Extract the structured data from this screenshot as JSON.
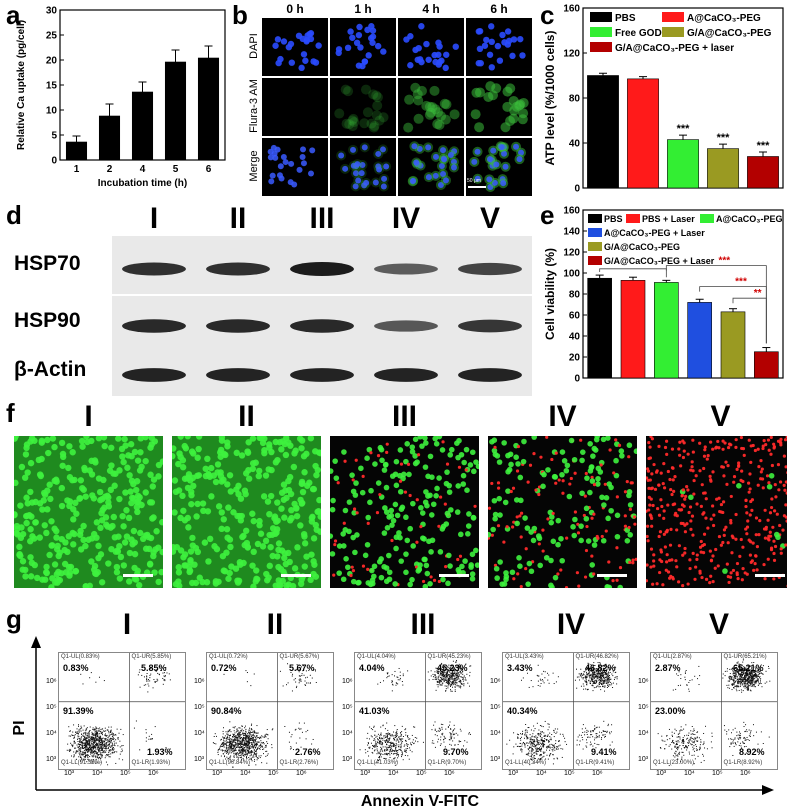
{
  "panels": {
    "a": "a",
    "b": "b",
    "c": "c",
    "d": "d",
    "e": "e",
    "f": "f",
    "g": "g"
  },
  "panel_a": {
    "chart_data": {
      "type": "bar",
      "categories": [
        "1",
        "2",
        "4",
        "5",
        "6"
      ],
      "values": [
        3.6,
        8.8,
        13.6,
        19.6,
        20.4
      ],
      "errors": [
        1.2,
        2.4,
        2.0,
        2.4,
        2.4
      ],
      "xlabel": "Incubation time (h)",
      "ylabel": "Relative Ca uptake (pg/cell)",
      "ylim": [
        0,
        30
      ],
      "yticks": [
        "0",
        "5",
        "10",
        "15",
        "20",
        "25",
        "30"
      ],
      "colors": [
        "#000000"
      ]
    }
  },
  "panel_b": {
    "columns": [
      "0 h",
      "1 h",
      "4 h",
      "6 h"
    ],
    "rows": [
      "DAPI",
      "Flura-3 AM",
      "Merge"
    ],
    "scale_label": "50 μm"
  },
  "panel_c": {
    "chart_data": {
      "type": "bar",
      "categories": [
        "PBS",
        "A@CaCO3-PEG",
        "Free GOD",
        "G/A@CaCO3-PEG",
        "G/A@CaCO3-PEG + laser"
      ],
      "values": [
        100,
        97,
        43,
        35,
        28
      ],
      "errors": [
        2,
        2,
        4,
        4,
        4
      ],
      "significance": [
        "",
        "",
        "***",
        "***",
        "***"
      ],
      "ylabel": "ATP level  (%/1000 cells)",
      "ylim": [
        0,
        160
      ],
      "yticks": [
        "0",
        "40",
        "80",
        "120",
        "160"
      ],
      "colors": [
        "#000000",
        "#ff1a1a",
        "#33ee33",
        "#9a9a22",
        "#b30000"
      ],
      "legend": [
        {
          "label": "PBS",
          "color": "#000000"
        },
        {
          "label": "A@CaCO₃-PEG",
          "color": "#ff1a1a"
        },
        {
          "label": "Free GOD",
          "color": "#33ee33"
        },
        {
          "label": "G/A@CaCO₃-PEG",
          "color": "#9a9a22"
        },
        {
          "label": "G/A@CaCO₃-PEG + laser",
          "color": "#b30000"
        }
      ]
    }
  },
  "panel_d": {
    "lanes": [
      "I",
      "II",
      "III",
      "IV",
      "V"
    ],
    "bands": [
      "HSP70",
      "HSP90",
      "β-Actin"
    ],
    "intensities": {
      "HSP70": [
        0.85,
        0.85,
        1.0,
        0.5,
        0.7
      ],
      "HSP90": [
        0.9,
        0.9,
        0.9,
        0.55,
        0.8
      ],
      "β-Actin": [
        0.95,
        0.95,
        0.95,
        0.95,
        0.95
      ]
    }
  },
  "panel_e": {
    "chart_data": {
      "type": "bar",
      "categories": [
        "PBS",
        "PBS + Laser",
        "A@CaCO3-PEG",
        "A@CaCO3-PEG + Laser",
        "G/A@CaCO3-PEG",
        "G/A@CaCO3-PEG + Laser"
      ],
      "values": [
        95,
        93,
        91,
        72,
        63,
        25
      ],
      "errors": [
        3,
        3,
        2,
        3,
        3,
        4
      ],
      "ylabel": "Cell viability  (%)",
      "ylim": [
        0,
        160
      ],
      "yticks": [
        "0",
        "20",
        "40",
        "60",
        "80",
        "100",
        "120",
        "140",
        "160"
      ],
      "colors": [
        "#000000",
        "#ff1a1a",
        "#33ee33",
        "#1f4fe0",
        "#9a9a22",
        "#b30000"
      ],
      "legend": [
        {
          "label": "PBS",
          "color": "#000000"
        },
        {
          "label": "PBS + Laser",
          "color": "#ff1a1a"
        },
        {
          "label": "A@CaCO₃-PEG",
          "color": "#33ee33"
        },
        {
          "label": "A@CaCO₃-PEG + Laser",
          "color": "#1f4fe0"
        },
        {
          "label": "G/A@CaCO₃-PEG",
          "color": "#9a9a22"
        },
        {
          "label": "G/A@CaCO₃-PEG + Laser",
          "color": "#b30000"
        }
      ],
      "significance": [
        "***",
        "***",
        "**"
      ]
    }
  },
  "panel_f": {
    "labels": [
      "I",
      "II",
      "III",
      "IV",
      "V"
    ],
    "live_fraction": [
      1.0,
      1.0,
      0.8,
      0.6,
      0.02
    ]
  },
  "panel_g": {
    "labels": [
      "I",
      "II",
      "III",
      "IV",
      "V"
    ],
    "ylabel": "PI",
    "xlabel": "Annexin V-FITC",
    "plots": [
      {
        "ul": "0.83%",
        "ur": "5.85%",
        "ll": "91.39%",
        "lr": "1.93%",
        "ul_small": "Q1-UL(0.83%)",
        "ur_small": "Q1-UR(5.85%)",
        "ll_small": "Q1-LL(91.39%)",
        "lr_small": "Q1-LR(1.93%)"
      },
      {
        "ul": "0.72%",
        "ur": "5.67%",
        "ll": "90.84%",
        "lr": "2.76%",
        "ul_small": "Q1-UL(0.72%)",
        "ur_small": "Q1-UR(5.67%)",
        "ll_small": "Q1-LL(90.84%)",
        "lr_small": "Q1-LR(2.76%)"
      },
      {
        "ul": "4.04%",
        "ur": "45.23%",
        "ll": "41.03%",
        "lr": "9.70%",
        "ul_small": "Q1-UL(4.04%)",
        "ur_small": "Q1-UR(45.23%)",
        "ll_small": "Q1-LL(41.03%)",
        "lr_small": "Q1-LR(9.70%)"
      },
      {
        "ul": "3.43%",
        "ur": "46.82%",
        "ll": "40.34%",
        "lr": "9.41%",
        "ul_small": "Q1-UL(3.43%)",
        "ur_small": "Q1-UR(46.82%)",
        "ll_small": "Q1-LL(40.34%)",
        "lr_small": "Q1-LR(9.41%)"
      },
      {
        "ul": "2.87%",
        "ur": "65.21%",
        "ll": "23.00%",
        "lr": "8.92%",
        "ul_small": "Q1-UL(2.87%)",
        "ur_small": "Q1-UR(65.21%)",
        "ll_small": "Q1-LL(23.00%)",
        "lr_small": "Q1-LR(8.92%)"
      }
    ],
    "xticks": [
      "10³",
      "10⁴",
      "10⁵",
      "10⁶"
    ],
    "yticks": [
      "10³",
      "10⁴",
      "10⁵",
      "10⁶"
    ]
  }
}
